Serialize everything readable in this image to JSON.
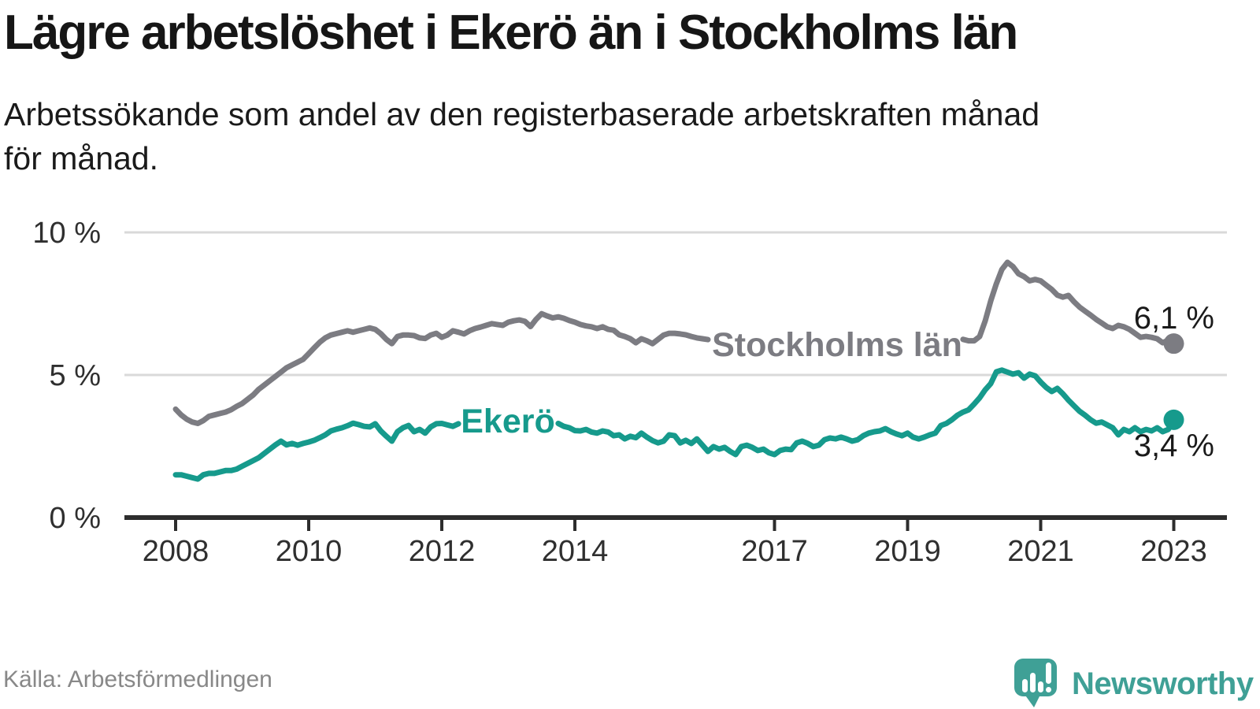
{
  "chart_data": {
    "type": "line",
    "title": "Lägre arbetslöshet i Ekerö än i Stockholms län",
    "subtitle": "Arbetssökande som andel av den registerbaserade arbetskraften månad för månad.",
    "subtitle_lines": [
      "Arbetssökande som andel av den registerbaserade arbetskraften månad",
      "för månad."
    ],
    "source": "Källa: Arbetsförmedlingen",
    "x_start": "2008-01",
    "x_end": "2023-01",
    "frequency": "monthly",
    "ylim": [
      0,
      10
    ],
    "grid": "horizontal",
    "legend": "inline-series-labels",
    "x_axis": {
      "ticks": [
        {
          "year": 2008,
          "label": "2008"
        },
        {
          "year": 2010,
          "label": "2010"
        },
        {
          "year": 2012,
          "label": "2012"
        },
        {
          "year": 2014,
          "label": "2014"
        },
        {
          "year": 2017,
          "label": "2017"
        },
        {
          "year": 2019,
          "label": "2019"
        },
        {
          "year": 2021,
          "label": "2021"
        },
        {
          "year": 2023,
          "label": "2023"
        }
      ]
    },
    "y_axis": {
      "ticks": [
        {
          "value": 0,
          "label": "0 %"
        },
        {
          "value": 5,
          "label": "5 %"
        },
        {
          "value": 10,
          "label": "10 %"
        }
      ]
    },
    "note": "null values = line segment hidden behind the inline series label in the original graphic",
    "series": [
      {
        "name": "Stockholms län",
        "color": "#7c7c82",
        "end_value": 6.1,
        "end_label": "6,1 %",
        "values": [
          3.8,
          3.6,
          3.45,
          3.35,
          3.3,
          3.4,
          3.55,
          3.6,
          3.65,
          3.7,
          3.78,
          3.9,
          4.0,
          4.15,
          4.3,
          4.5,
          4.65,
          4.8,
          4.95,
          5.1,
          5.25,
          5.35,
          5.45,
          5.55,
          5.75,
          5.95,
          6.15,
          6.3,
          6.4,
          6.45,
          6.5,
          6.55,
          6.5,
          6.55,
          6.6,
          6.65,
          6.6,
          6.45,
          6.25,
          6.1,
          6.35,
          6.4,
          6.4,
          6.38,
          6.3,
          6.28,
          6.4,
          6.46,
          6.32,
          6.4,
          6.55,
          6.5,
          6.44,
          6.55,
          6.63,
          6.68,
          6.74,
          6.8,
          6.77,
          6.74,
          6.85,
          6.9,
          6.93,
          6.88,
          6.7,
          6.95,
          7.15,
          7.07,
          7.0,
          7.04,
          6.99,
          6.91,
          6.85,
          6.77,
          6.72,
          6.69,
          6.63,
          6.69,
          6.6,
          6.57,
          6.41,
          6.35,
          6.27,
          6.13,
          6.27,
          6.2,
          6.1,
          6.25,
          6.4,
          6.46,
          6.46,
          6.44,
          6.41,
          6.35,
          6.3,
          6.27,
          6.24,
          null,
          null,
          null,
          null,
          null,
          null,
          null,
          null,
          null,
          null,
          null,
          null,
          null,
          null,
          null,
          null,
          null,
          null,
          null,
          null,
          null,
          null,
          null,
          null,
          null,
          null,
          null,
          null,
          null,
          null,
          null,
          null,
          null,
          null,
          null,
          null,
          null,
          null,
          null,
          null,
          null,
          null,
          null,
          null,
          null,
          6.25,
          6.2,
          6.2,
          6.35,
          6.9,
          7.6,
          8.2,
          8.7,
          8.95,
          8.8,
          8.55,
          8.45,
          8.3,
          8.35,
          8.3,
          8.15,
          8.0,
          7.8,
          7.73,
          7.79,
          7.57,
          7.38,
          7.24,
          7.1,
          6.95,
          6.82,
          6.69,
          6.63,
          6.74,
          6.69,
          6.6,
          6.46,
          6.32,
          6.35,
          6.32,
          6.27,
          6.13,
          6.22,
          6.1
        ]
      },
      {
        "name": "Ekerö",
        "color": "#169a8c",
        "end_value": 3.4,
        "end_label": "3,4 %",
        "values": [
          1.5,
          1.5,
          1.45,
          1.4,
          1.35,
          1.5,
          1.55,
          1.55,
          1.6,
          1.65,
          1.65,
          1.7,
          1.8,
          1.9,
          2.0,
          2.1,
          2.25,
          2.4,
          2.55,
          2.68,
          2.55,
          2.6,
          2.54,
          2.6,
          2.65,
          2.71,
          2.8,
          2.9,
          3.04,
          3.1,
          3.15,
          3.22,
          3.31,
          3.26,
          3.2,
          3.18,
          3.29,
          3.04,
          2.85,
          2.68,
          3.01,
          3.15,
          3.23,
          3.01,
          3.09,
          2.96,
          3.18,
          3.29,
          3.3,
          3.25,
          3.2,
          3.29,
          null,
          null,
          null,
          null,
          null,
          null,
          null,
          null,
          null,
          null,
          null,
          null,
          null,
          null,
          null,
          null,
          null,
          3.3,
          3.2,
          3.15,
          3.05,
          3.04,
          3.09,
          3.0,
          2.96,
          3.04,
          3.0,
          2.87,
          2.9,
          2.76,
          2.85,
          2.8,
          2.96,
          2.82,
          2.7,
          2.62,
          2.68,
          2.9,
          2.87,
          2.62,
          2.71,
          2.6,
          2.76,
          2.54,
          2.32,
          2.49,
          2.4,
          2.46,
          2.32,
          2.21,
          2.49,
          2.54,
          2.46,
          2.35,
          2.4,
          2.27,
          2.21,
          2.35,
          2.4,
          2.38,
          2.62,
          2.68,
          2.6,
          2.49,
          2.54,
          2.73,
          2.79,
          2.76,
          2.82,
          2.76,
          2.68,
          2.73,
          2.87,
          2.96,
          3.01,
          3.04,
          3.12,
          3.01,
          2.93,
          2.87,
          2.96,
          2.82,
          2.76,
          2.82,
          2.9,
          2.96,
          3.23,
          3.3,
          3.43,
          3.59,
          3.7,
          3.78,
          3.98,
          4.2,
          4.48,
          4.7,
          5.11,
          5.17,
          5.1,
          5.03,
          5.08,
          4.89,
          5.03,
          4.97,
          4.75,
          4.56,
          4.42,
          4.53,
          4.34,
          4.12,
          3.92,
          3.73,
          3.59,
          3.43,
          3.31,
          3.35,
          3.25,
          3.15,
          2.9,
          3.09,
          3.01,
          3.15,
          3.01,
          3.09,
          3.04,
          3.15,
          3.01,
          3.09,
          3.43
        ]
      }
    ]
  },
  "footer": {
    "logo_text": "Newsworthy"
  },
  "colors": {
    "stockholm_line": "#7c7c82",
    "ekero_line": "#169a8c",
    "logo_teal": "#3fa096",
    "gridline": "#d9d9d9",
    "axis": "#2d2d2d",
    "text": "#1a1a1a"
  }
}
